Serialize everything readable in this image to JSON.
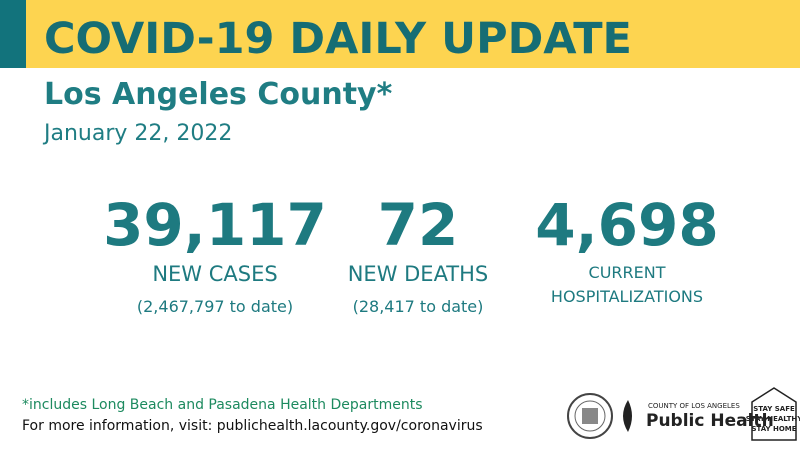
{
  "header": {
    "title": "COVID-19 DAILY UPDATE",
    "location": "Los Angeles County*",
    "date": "January 22, 2022"
  },
  "stats": [
    {
      "number": "39,117",
      "label_lines": [
        "NEW CASES"
      ],
      "note": "(2,467,797 to date)"
    },
    {
      "number": "72",
      "label_lines": [
        "NEW DEATHS"
      ],
      "note": "(28,417 to date)"
    },
    {
      "number": "4,698",
      "label_lines": [
        "CURRENT",
        "HOSPITALIZATIONS"
      ]
    }
  ],
  "footer": {
    "footnote": "*includes Long Beach and Pasadena Health Departments",
    "info": "For more information, visit: publichealth.lacounty.gov/coronavirus"
  },
  "logos": {
    "county": "COUNTY OF LOS ANGELES",
    "department": "Public Health",
    "motto": [
      "STAY SAFE",
      "STAY HEALTHY",
      "STAY HOME"
    ]
  }
}
